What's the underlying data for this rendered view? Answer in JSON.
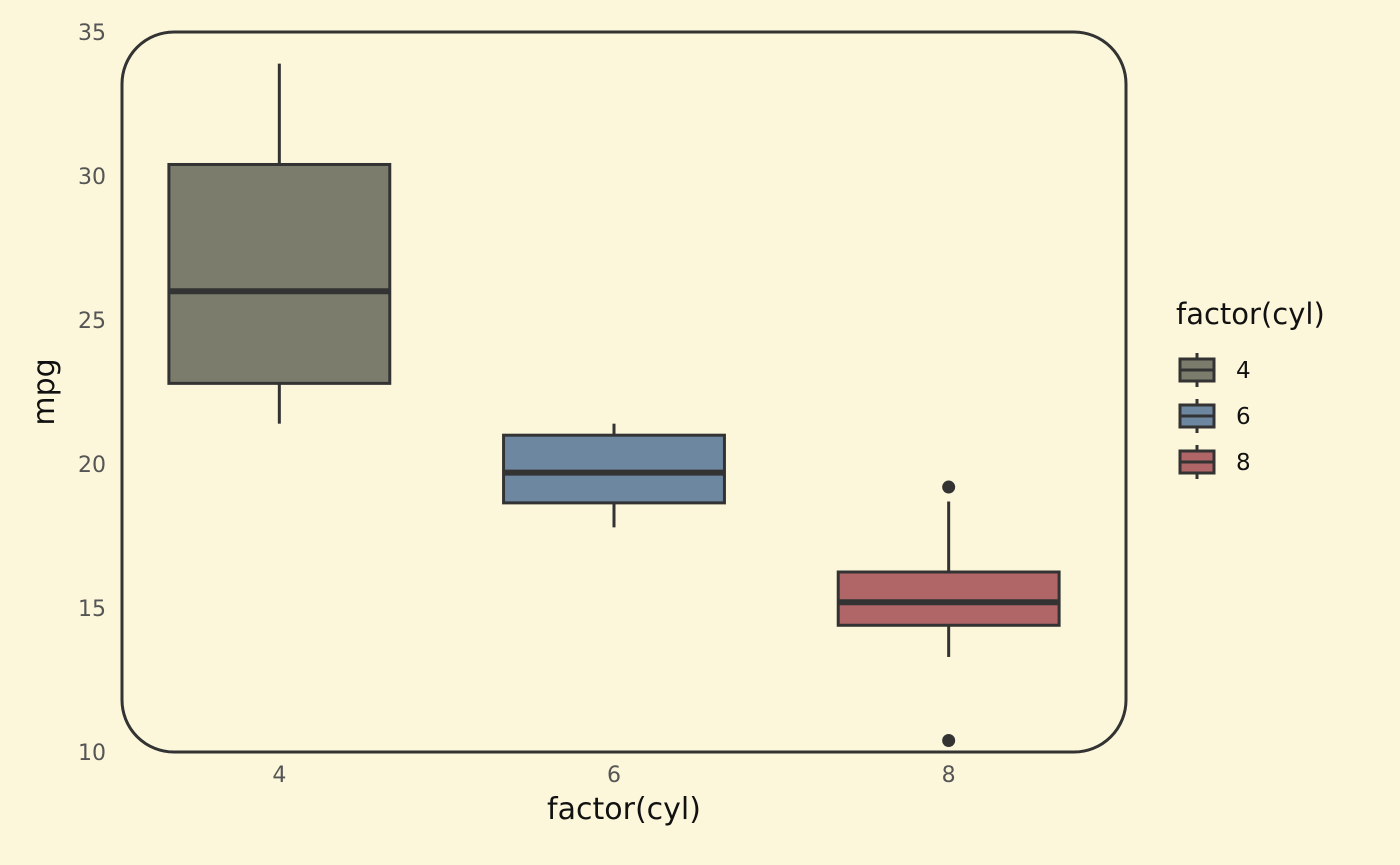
{
  "chart_data": {
    "type": "box",
    "xlabel": "factor(cyl)",
    "ylabel": "mpg",
    "ylim": [
      10,
      35
    ],
    "y_ticks": [
      10,
      15,
      20,
      25,
      30,
      35
    ],
    "categories": [
      "4",
      "6",
      "8"
    ],
    "boxes": [
      {
        "category": "4",
        "color": "#7b7c6c",
        "min": 21.4,
        "q1": 22.8,
        "median": 26.0,
        "q3": 30.4,
        "max": 33.9,
        "outliers": []
      },
      {
        "category": "6",
        "color": "#6e87a1",
        "min": 17.8,
        "q1": 18.65,
        "median": 19.7,
        "q3": 21.0,
        "max": 21.4,
        "outliers": []
      },
      {
        "category": "8",
        "color": "#b06567",
        "min": 13.3,
        "q1": 14.4,
        "median": 15.2,
        "q3": 16.25,
        "max": 18.7,
        "outliers": [
          19.2,
          10.4
        ]
      }
    ],
    "legend": {
      "title": "factor(cyl)",
      "position": "right",
      "items": [
        "4",
        "6",
        "8"
      ]
    },
    "grid": false
  }
}
